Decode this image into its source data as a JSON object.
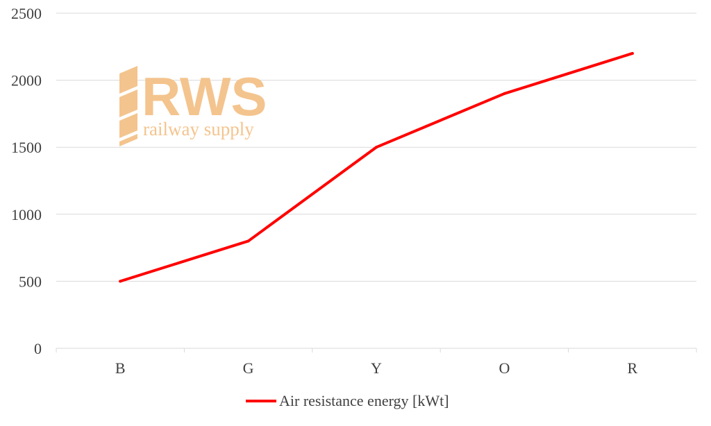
{
  "chart_data": {
    "type": "line",
    "categories": [
      "B",
      "G",
      "Y",
      "O",
      "R"
    ],
    "series": [
      {
        "name": "Air resistance energy [kWt]",
        "values": [
          500,
          800,
          1500,
          1900,
          2200
        ],
        "color": "#ff0000"
      }
    ],
    "ylim": [
      0,
      2500
    ],
    "yticks": [
      "0",
      "500",
      "1000",
      "1500",
      "2000",
      "2500"
    ],
    "grid": true,
    "legend_position": "bottom-center",
    "title": "",
    "xlabel": "",
    "ylabel": ""
  },
  "watermark": {
    "logo_text": "RWS",
    "tagline": "railway supply",
    "color": "#f4c48e"
  }
}
